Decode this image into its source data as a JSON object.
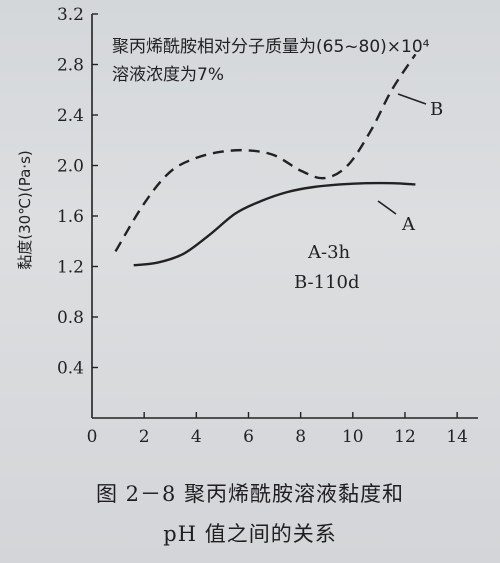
{
  "chart_data": {
    "type": "line",
    "annotation_lines": [
      "聚丙烯酰胺相对分子质量为(65~80)×10⁴",
      "溶液浓度为7%"
    ],
    "legend_lines": [
      "A-3h",
      "B-110d"
    ],
    "ylabel": "黏度(30℃)(Pa·s)",
    "xlabel": "",
    "xlim": [
      0,
      14.8
    ],
    "ylim": [
      0,
      3.2
    ],
    "x_ticks": [
      0,
      2,
      4,
      6,
      8,
      10,
      12,
      14
    ],
    "y_ticks": [
      0.4,
      0.8,
      1.2,
      1.6,
      2.0,
      2.4,
      2.8,
      3.2
    ],
    "x_tick_labels": [
      "0",
      "2",
      "4",
      "6",
      "8",
      "10",
      "12",
      "14"
    ],
    "y_tick_labels": [
      "0.4",
      "0.8",
      "1.2",
      "1.6",
      "2.0",
      "2.4",
      "2.8",
      "3.2"
    ],
    "grid": false,
    "series": [
      {
        "name": "A",
        "style": "solid",
        "color": "#222222",
        "x": [
          1.6,
          2.5,
          3.5,
          4.5,
          5.5,
          6.5,
          7.5,
          8.5,
          9.5,
          10.5,
          11.5,
          12.4
        ],
        "y": [
          1.21,
          1.23,
          1.3,
          1.45,
          1.62,
          1.72,
          1.79,
          1.83,
          1.85,
          1.86,
          1.86,
          1.85
        ]
      },
      {
        "name": "B",
        "style": "dashed",
        "color": "#222222",
        "x": [
          0.9,
          2.0,
          3.0,
          4.0,
          5.0,
          6.0,
          7.0,
          8.0,
          8.9,
          9.8,
          10.7,
          11.5,
          12.4
        ],
        "y": [
          1.32,
          1.7,
          1.95,
          2.06,
          2.11,
          2.12,
          2.08,
          1.96,
          1.9,
          2.0,
          2.28,
          2.6,
          2.88
        ]
      }
    ],
    "series_labels": [
      {
        "text": "A"
      },
      {
        "text": "B"
      }
    ]
  },
  "caption": {
    "line1": "图 2－8  聚丙烯酰胺溶液黏度和",
    "line2": "pH 值之间的关系"
  }
}
